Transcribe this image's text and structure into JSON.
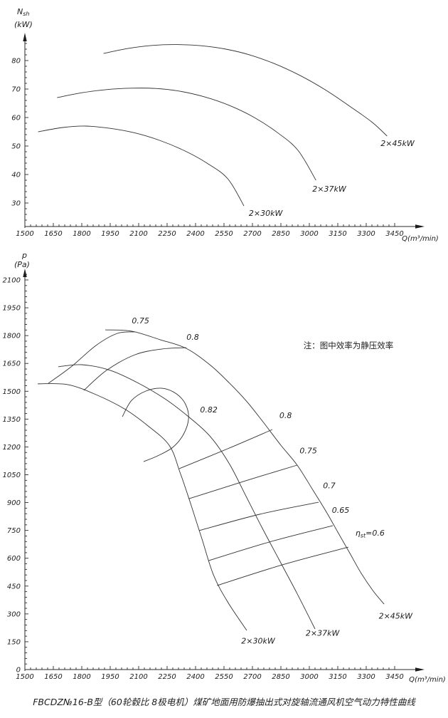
{
  "caption": "FBCDZ№16-B型（60轮毂比 8极电机）煤矿地面用防爆抽出式对旋轴流通风机空气动力特性曲线",
  "chart_data": [
    {
      "type": "line",
      "xlabel": "Q(m³/min)",
      "ylabel_main": "N",
      "ylabel_sub": "sh",
      "ylabel_unit": "(kW)",
      "xlim": [
        1500,
        3560
      ],
      "ylim": [
        22,
        88
      ],
      "grid": false,
      "legend_position": "curve-end-labels",
      "x_ticks": [
        1500,
        1650,
        1800,
        1950,
        2100,
        2250,
        2400,
        2550,
        2700,
        2850,
        3000,
        3150,
        3300,
        3450
      ],
      "y_ticks": [
        30,
        40,
        50,
        60,
        70,
        80
      ],
      "x_minor_step": 30,
      "y_minor_step": 2,
      "series": [
        {
          "name": "2×30kW",
          "label_at": [
            2770,
            25.5
          ],
          "points": [
            [
              1570,
              55
            ],
            [
              1700,
              56.5
            ],
            [
              1820,
              57
            ],
            [
              1950,
              56.2
            ],
            [
              2080,
              54.6
            ],
            [
              2210,
              52
            ],
            [
              2340,
              48.4
            ],
            [
              2460,
              44
            ],
            [
              2570,
              38.5
            ],
            [
              2655,
              29
            ]
          ]
        },
        {
          "name": "2×37kW",
          "label_at": [
            3105,
            34
          ],
          "points": [
            [
              1670,
              67
            ],
            [
              1800,
              68.7
            ],
            [
              1930,
              69.8
            ],
            [
              2060,
              70.3
            ],
            [
              2190,
              70.2
            ],
            [
              2320,
              69.2
            ],
            [
              2450,
              67.2
            ],
            [
              2580,
              64.2
            ],
            [
              2710,
              60
            ],
            [
              2830,
              54.8
            ],
            [
              2940,
              48.5
            ],
            [
              3035,
              38
            ]
          ]
        },
        {
          "name": "2×45kW",
          "label_at": [
            3465,
            50
          ],
          "points": [
            [
              1915,
              82.5
            ],
            [
              2040,
              84.2
            ],
            [
              2170,
              85.3
            ],
            [
              2300,
              85.6
            ],
            [
              2430,
              85.2
            ],
            [
              2560,
              84
            ],
            [
              2690,
              81.9
            ],
            [
              2820,
              78.8
            ],
            [
              2950,
              74.8
            ],
            [
              3080,
              69.9
            ],
            [
              3210,
              64.1
            ],
            [
              3330,
              58.4
            ],
            [
              3410,
              53.5
            ]
          ]
        }
      ]
    },
    {
      "type": "line",
      "xlabel": "Q(m³/min)",
      "ylabel_main": "p",
      "ylabel_sub": "",
      "ylabel_unit": "(Pa)",
      "xlim": [
        1500,
        3560
      ],
      "ylim": [
        0,
        2140
      ],
      "grid": false,
      "note": "注：图中效率为静压效率",
      "x_ticks": [
        1500,
        1650,
        1800,
        1950,
        2100,
        2250,
        2400,
        2550,
        2700,
        2850,
        3000,
        3150,
        3300,
        3450
      ],
      "y_ticks": [
        0,
        150,
        300,
        450,
        600,
        750,
        900,
        1050,
        1200,
        1350,
        1500,
        1650,
        1800,
        1950,
        2100
      ],
      "x_minor_step": 30,
      "y_minor_step": 30,
      "series": [
        {
          "name": "2×30kW",
          "label_at": [
            2730,
            140
          ],
          "points": [
            [
              1568,
              1540
            ],
            [
              1725,
              1536
            ],
            [
              1875,
              1482
            ],
            [
              2025,
              1405
            ],
            [
              2145,
              1317
            ],
            [
              2261,
              1209
            ],
            [
              2318,
              1063
            ],
            [
              2374,
              894
            ],
            [
              2434,
              703
            ],
            [
              2494,
              511
            ],
            [
              2569,
              365
            ],
            [
              2670,
              211
            ]
          ]
        },
        {
          "name": "2×37kW",
          "label_at": [
            3070,
            182
          ],
          "points": [
            [
              1676,
              1632
            ],
            [
              1800,
              1643
            ],
            [
              1950,
              1613
            ],
            [
              2100,
              1543
            ],
            [
              2239,
              1459
            ],
            [
              2363,
              1363
            ],
            [
              2475,
              1259
            ],
            [
              2576,
              1113
            ],
            [
              2663,
              941
            ],
            [
              2749,
              768
            ],
            [
              2839,
              595
            ],
            [
              2933,
              415
            ],
            [
              3030,
              219
            ]
          ]
        },
        {
          "name": "2×45kW",
          "label_at": [
            3455,
            275
          ],
          "points": [
            [
              1924,
              1831
            ],
            [
              2063,
              1824
            ],
            [
              2213,
              1778
            ],
            [
              2351,
              1731
            ],
            [
              2475,
              1643
            ],
            [
              2576,
              1547
            ],
            [
              2674,
              1440
            ],
            [
              2764,
              1324
            ],
            [
              2850,
              1209
            ],
            [
              2936,
              1102
            ],
            [
              3019,
              967
            ],
            [
              3086,
              856
            ],
            [
              3150,
              741
            ],
            [
              3214,
              626
            ],
            [
              3274,
              518
            ],
            [
              3338,
              422
            ],
            [
              3394,
              353
            ]
          ]
        }
      ],
      "contours": [
        {
          "label": "0.75",
          "label_at": [
            2110,
            1865
          ],
          "points": [
            [
              1624,
              1543
            ],
            [
              1744,
              1632
            ],
            [
              1875,
              1747
            ],
            [
              1988,
              1812
            ],
            [
              2081,
              1820
            ]
          ]
        },
        {
          "label": "0.8",
          "label_at": [
            2385,
            1777
          ],
          "points": [
            [
              1811,
              1505
            ],
            [
              1931,
              1613
            ],
            [
              2081,
              1697
            ],
            [
              2224,
              1728
            ],
            [
              2351,
              1735
            ]
          ]
        },
        {
          "label": "0.82",
          "label_at": [
            2470,
            1385
          ],
          "points": [
            [
              2014,
              1363
            ],
            [
              2063,
              1451
            ],
            [
              2138,
              1501
            ],
            [
              2224,
              1516
            ],
            [
              2299,
              1486
            ],
            [
              2348,
              1428
            ],
            [
              2363,
              1351
            ],
            [
              2336,
              1267
            ],
            [
              2280,
              1198
            ],
            [
              2201,
              1152
            ],
            [
              2126,
              1121
            ]
          ]
        },
        {
          "label": "0.8",
          "label_at": [
            2875,
            1355
          ],
          "points": [
            [
              2314,
              1083
            ],
            [
              2569,
              1190
            ],
            [
              2805,
              1294
            ]
          ]
        },
        {
          "label": "0.75",
          "label_at": [
            2995,
            1165
          ],
          "points": [
            [
              2366,
              921
            ],
            [
              2663,
              1017
            ],
            [
              2936,
              1102
            ]
          ]
        },
        {
          "label": "0.7",
          "label_at": [
            3105,
            978
          ],
          "points": [
            [
              2419,
              749
            ],
            [
              2738,
              837
            ],
            [
              3049,
              902
            ]
          ]
        },
        {
          "label": "0.65",
          "label_at": [
            3165,
            845
          ],
          "points": [
            [
              2468,
              587
            ],
            [
              2801,
              691
            ],
            [
              3124,
              776
            ]
          ]
        },
        {
          "label": "ηst=0.6",
          "label_at": [
            3320,
            722
          ],
          "points": [
            [
              2513,
              453
            ],
            [
              2869,
              568
            ],
            [
              3206,
              660
            ]
          ]
        }
      ]
    }
  ]
}
